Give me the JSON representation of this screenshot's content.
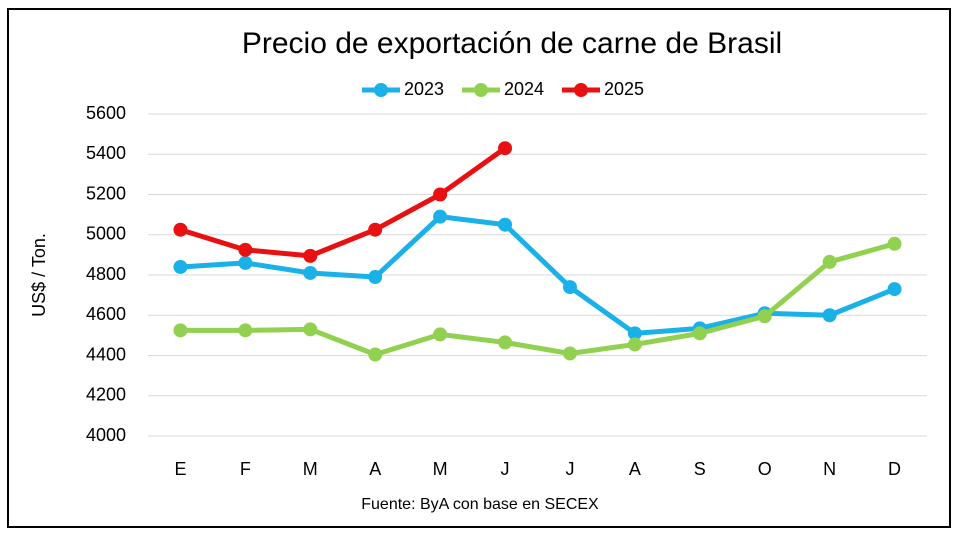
{
  "chart_data": {
    "type": "line",
    "title": "Precio de exportación de carne de Brasil",
    "y_label": "US$ / Ton.",
    "source": "Fuente: ByA con base en SECEX",
    "categories": [
      "E",
      "F",
      "M",
      "A",
      "M",
      "J",
      "J",
      "A",
      "S",
      "O",
      "N",
      "D"
    ],
    "series": [
      {
        "name": "2023",
        "color": "#1ab0e8",
        "values": [
          4840,
          4860,
          4810,
          4790,
          5090,
          5050,
          4740,
          4510,
          4535,
          4610,
          4600,
          4730
        ]
      },
      {
        "name": "2024",
        "color": "#92d050",
        "values": [
          4525,
          4525,
          4530,
          4405,
          4505,
          4465,
          4410,
          4455,
          4510,
          4595,
          4865,
          4955
        ]
      },
      {
        "name": "2025",
        "color": "#e81010",
        "values": [
          5025,
          4925,
          4895,
          5025,
          5200,
          5430,
          null,
          null,
          null,
          null,
          null,
          null
        ]
      }
    ],
    "ylim": [
      4000,
      5600
    ],
    "yticks": [
      4000,
      4200,
      4400,
      4600,
      4800,
      5000,
      5200,
      5400,
      5600
    ],
    "grid": true,
    "legend": "top"
  }
}
